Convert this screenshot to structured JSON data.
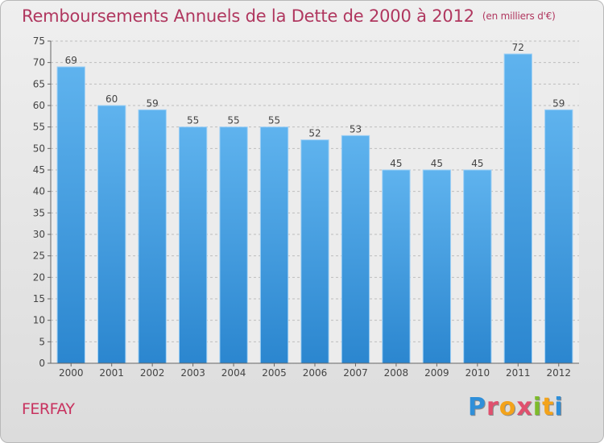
{
  "header": {
    "title": "Remboursements Annuels de la Dette de 2000 à 2012",
    "subtitle": "(en milliers d'€)"
  },
  "footer": {
    "place": "FERFAY",
    "logo": [
      "P",
      "r",
      "o",
      "x",
      "i",
      "t",
      "i"
    ]
  },
  "colors": {
    "title": "#b0375f",
    "bar": "#3f9ee6",
    "grid": "#bdbdbd"
  },
  "chart_data": {
    "type": "bar",
    "title": "Remboursements Annuels de la Dette de 2000 à 2012",
    "subtitle": "(en milliers d'€)",
    "xlabel": "",
    "ylabel": "",
    "categories": [
      "2000",
      "2001",
      "2002",
      "2003",
      "2004",
      "2005",
      "2006",
      "2007",
      "2008",
      "2009",
      "2010",
      "2011",
      "2012"
    ],
    "values": [
      69,
      60,
      59,
      55,
      55,
      55,
      52,
      53,
      45,
      45,
      45,
      72,
      59
    ],
    "ylim": [
      0,
      75
    ],
    "yticks": [
      0,
      5,
      10,
      15,
      20,
      25,
      30,
      35,
      40,
      45,
      50,
      55,
      60,
      65,
      70,
      75
    ],
    "grid": "horizontal dashed",
    "legend": "none"
  }
}
